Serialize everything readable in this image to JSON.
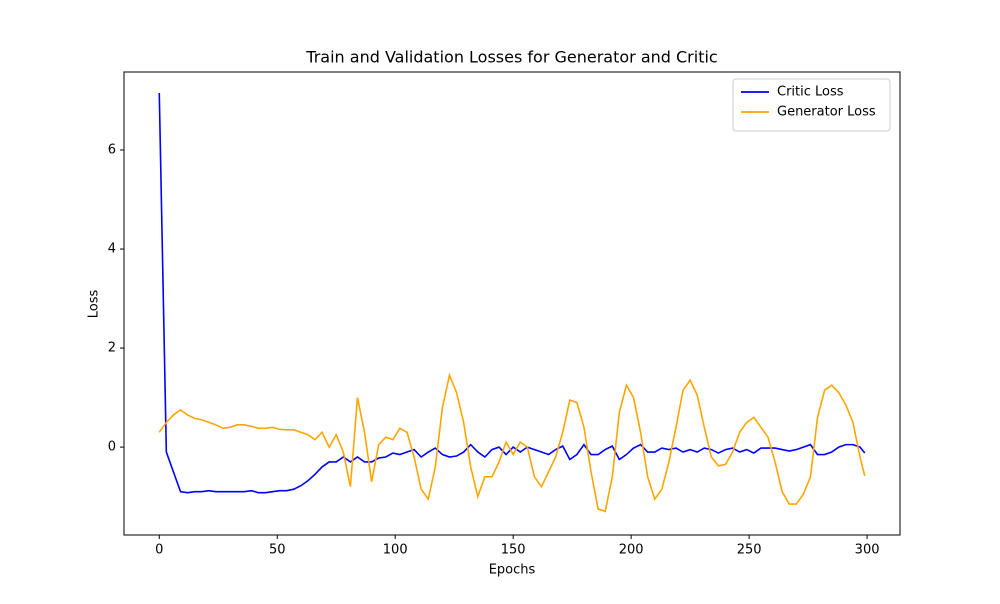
{
  "chart_data": {
    "type": "line",
    "title": "Train and Validation Losses for Generator and Critic",
    "xlabel": "Epochs",
    "ylabel": "Loss",
    "x": [
      0,
      3,
      6,
      9,
      12,
      15,
      18,
      21,
      24,
      27,
      30,
      33,
      36,
      39,
      42,
      45,
      48,
      51,
      54,
      57,
      60,
      63,
      66,
      69,
      72,
      75,
      78,
      81,
      84,
      87,
      90,
      93,
      96,
      99,
      102,
      105,
      108,
      111,
      114,
      117,
      120,
      123,
      126,
      129,
      132,
      135,
      138,
      141,
      144,
      147,
      150,
      153,
      156,
      159,
      162,
      165,
      168,
      171,
      174,
      177,
      180,
      183,
      186,
      189,
      192,
      195,
      198,
      201,
      204,
      207,
      210,
      213,
      216,
      219,
      222,
      225,
      228,
      231,
      234,
      237,
      240,
      243,
      246,
      249,
      252,
      255,
      258,
      261,
      264,
      267,
      270,
      273,
      276,
      279,
      282,
      285,
      288,
      291,
      294,
      297,
      299
    ],
    "series": [
      {
        "name": "Critic Loss",
        "color": "#0000ff",
        "values": [
          7.15,
          -0.1,
          -0.5,
          -0.9,
          -0.92,
          -0.9,
          -0.9,
          -0.88,
          -0.9,
          -0.9,
          -0.9,
          -0.9,
          -0.9,
          -0.88,
          -0.92,
          -0.92,
          -0.9,
          -0.88,
          -0.88,
          -0.85,
          -0.78,
          -0.68,
          -0.55,
          -0.4,
          -0.3,
          -0.3,
          -0.2,
          -0.3,
          -0.2,
          -0.3,
          -0.3,
          -0.22,
          -0.2,
          -0.12,
          -0.15,
          -0.1,
          -0.05,
          -0.2,
          -0.1,
          -0.02,
          -0.15,
          -0.2,
          -0.18,
          -0.1,
          0.05,
          -0.1,
          -0.2,
          -0.05,
          0.0,
          -0.15,
          0.0,
          -0.1,
          0.0,
          -0.05,
          -0.1,
          -0.15,
          -0.05,
          0.02,
          -0.25,
          -0.15,
          0.05,
          -0.15,
          -0.15,
          -0.05,
          0.02,
          -0.25,
          -0.15,
          -0.02,
          0.05,
          -0.1,
          -0.1,
          -0.02,
          -0.05,
          -0.02,
          -0.1,
          -0.05,
          -0.1,
          -0.02,
          -0.05,
          -0.12,
          -0.05,
          -0.02,
          -0.1,
          -0.05,
          -0.12,
          -0.02,
          -0.02,
          -0.02,
          -0.05,
          -0.08,
          -0.05,
          0.0,
          0.05,
          -0.15,
          -0.15,
          -0.1,
          0.0,
          0.05,
          0.05,
          0.0,
          -0.12
        ]
      },
      {
        "name": "Generator Loss",
        "color": "#ffa500",
        "values": [
          0.3,
          0.5,
          0.65,
          0.75,
          0.65,
          0.58,
          0.55,
          0.5,
          0.45,
          0.38,
          0.4,
          0.45,
          0.45,
          0.42,
          0.38,
          0.38,
          0.4,
          0.36,
          0.35,
          0.35,
          0.3,
          0.25,
          0.15,
          0.3,
          0.0,
          0.25,
          -0.1,
          -0.8,
          1.0,
          0.3,
          -0.7,
          0.05,
          0.2,
          0.15,
          0.38,
          0.3,
          -0.2,
          -0.85,
          -1.05,
          -0.4,
          0.8,
          1.45,
          1.1,
          0.5,
          -0.4,
          -1.0,
          -0.6,
          -0.6,
          -0.3,
          0.1,
          -0.15,
          0.1,
          0.0,
          -0.6,
          -0.8,
          -0.5,
          -0.2,
          0.3,
          0.95,
          0.9,
          0.4,
          -0.5,
          -1.25,
          -1.3,
          -0.6,
          0.7,
          1.25,
          1.0,
          0.3,
          -0.6,
          -1.05,
          -0.85,
          -0.3,
          0.4,
          1.15,
          1.35,
          1.05,
          0.4,
          -0.2,
          -0.38,
          -0.35,
          -0.1,
          0.3,
          0.5,
          0.6,
          0.4,
          0.2,
          -0.3,
          -0.9,
          -1.15,
          -1.15,
          -0.95,
          -0.6,
          0.6,
          1.15,
          1.25,
          1.1,
          0.85,
          0.5,
          -0.2,
          -0.58
        ]
      }
    ],
    "xlim": [
      -14.95,
      313.95
    ],
    "xticks": [
      0,
      50,
      100,
      150,
      200,
      250,
      300
    ],
    "ylim": [
      -1.775,
      7.575
    ],
    "yticks": [
      0,
      2,
      4,
      6
    ],
    "legend": "upper right",
    "grid": false
  }
}
